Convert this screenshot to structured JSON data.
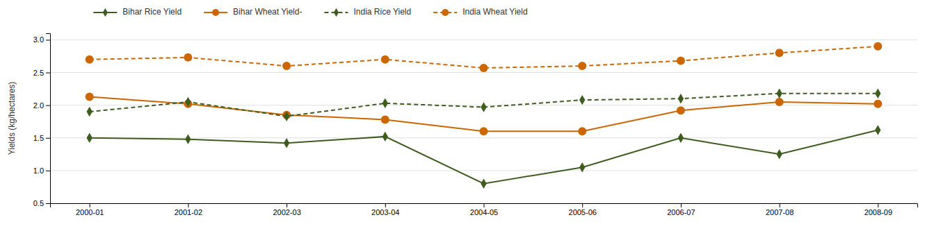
{
  "chart_data": {
    "type": "line",
    "categories": [
      "2000-01",
      "2001-02",
      "2002-03",
      "2003-04",
      "2004-05",
      "2005-06",
      "2006-07",
      "2007-08",
      "2008-09"
    ],
    "series": [
      {
        "name": "Bihar Rice Yield",
        "color": "#3d5c1e",
        "marker": "diamond",
        "line_style": "solid",
        "values": [
          1.5,
          1.48,
          1.42,
          1.52,
          0.8,
          1.05,
          1.5,
          1.25,
          1.62
        ]
      },
      {
        "name": "Bihar Wheat Yield-",
        "color": "#cc6600",
        "marker": "circle",
        "line_style": "solid",
        "values": [
          2.13,
          2.02,
          1.85,
          1.78,
          1.6,
          1.6,
          1.92,
          2.05,
          2.02
        ]
      },
      {
        "name": "India Rice Yield",
        "color": "#3d5c1e",
        "marker": "diamond",
        "line_style": "dashed",
        "values": [
          1.9,
          2.05,
          1.83,
          2.03,
          1.97,
          2.08,
          2.1,
          2.18,
          2.18
        ]
      },
      {
        "name": "India Wheat Yield",
        "color": "#cc6600",
        "marker": "circle",
        "line_style": "dashed",
        "values": [
          2.7,
          2.73,
          2.6,
          2.7,
          2.57,
          2.6,
          2.68,
          2.8,
          2.9
        ]
      }
    ],
    "ylabel": "Yields (kg/hectares)",
    "ylim": [
      0.5,
      3.1
    ],
    "yticks": [
      0.5,
      {
        "value": 1,
        "label": "1.0"
      },
      1.5,
      {
        "value": 2,
        "label": "2.0"
      },
      2.5,
      {
        "value": 3,
        "label": "3.0"
      }
    ],
    "grid": true,
    "legend": "top"
  }
}
